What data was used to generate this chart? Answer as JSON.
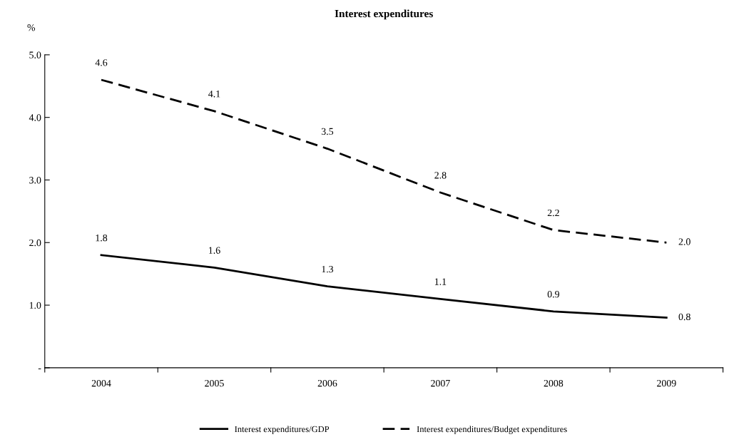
{
  "chart_data": {
    "type": "line",
    "title": "Interest expenditures",
    "ylabel": "%",
    "categories": [
      "2004",
      "2005",
      "2006",
      "2007",
      "2008",
      "2009"
    ],
    "series": [
      {
        "name": "Interest expenditures/GDP",
        "color": "#000000",
        "line_style": "solid",
        "values": [
          1.8,
          1.6,
          1.3,
          1.1,
          0.9,
          0.8
        ],
        "value_labels": [
          "1.8",
          "1.6",
          "1.3",
          "1.1",
          "0.9",
          "0.8"
        ]
      },
      {
        "name": "Interest expenditures/Budget expenditures",
        "color": "#000000",
        "line_style": "dashed",
        "values": [
          4.6,
          4.1,
          3.5,
          2.8,
          2.2,
          2.0
        ],
        "value_labels": [
          "4.6",
          "4.1",
          "3.5",
          "2.8",
          "2.2",
          "2.0"
        ]
      }
    ],
    "ylim": [
      0,
      5
    ],
    "yticks": [
      {
        "value": 0,
        "label": "-"
      },
      {
        "value": 1,
        "label": "1.0"
      },
      {
        "value": 2,
        "label": "2.0"
      },
      {
        "value": 3,
        "label": "3.0"
      },
      {
        "value": 4,
        "label": "4.0"
      },
      {
        "value": 5,
        "label": "5.0"
      }
    ],
    "grid": false,
    "legend": "bottom",
    "marker": "none"
  }
}
